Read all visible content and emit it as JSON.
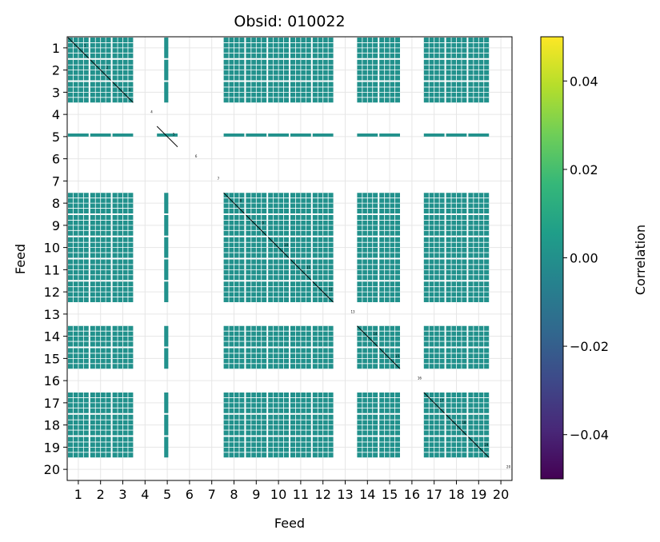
{
  "chart_data": {
    "type": "heatmap",
    "title": "Obsid: 010022",
    "xlabel": "Feed",
    "ylabel": "Feed",
    "feeds": [
      "1",
      "2",
      "3",
      "4",
      "5",
      "6",
      "7",
      "8",
      "9",
      "10",
      "11",
      "12",
      "13",
      "14",
      "15",
      "16",
      "17",
      "18",
      "19",
      "20"
    ],
    "cell_value": 0.0,
    "cell_color": "#21918c",
    "active_feeds": [
      1,
      2,
      3,
      5,
      8,
      9,
      10,
      11,
      12,
      14,
      15,
      17,
      18,
      19
    ],
    "dead_feeds": [
      4,
      6,
      7,
      13,
      16,
      20
    ],
    "partial_feeds": [
      5
    ],
    "grid": true,
    "colorbar": {
      "label": "Correlation",
      "min": -0.05,
      "max": 0.05,
      "ticks": [
        -0.04,
        -0.02,
        0.0,
        0.02,
        0.04
      ],
      "tick_labels": [
        "−0.04",
        "−0.02",
        "0.00",
        "0.02",
        "0.04"
      ],
      "colormap": [
        "#440154",
        "#482878",
        "#3e4989",
        "#31688e",
        "#26828e",
        "#1f9e89",
        "#35b779",
        "#6ece58",
        "#b5de2b",
        "#fde725"
      ]
    }
  }
}
